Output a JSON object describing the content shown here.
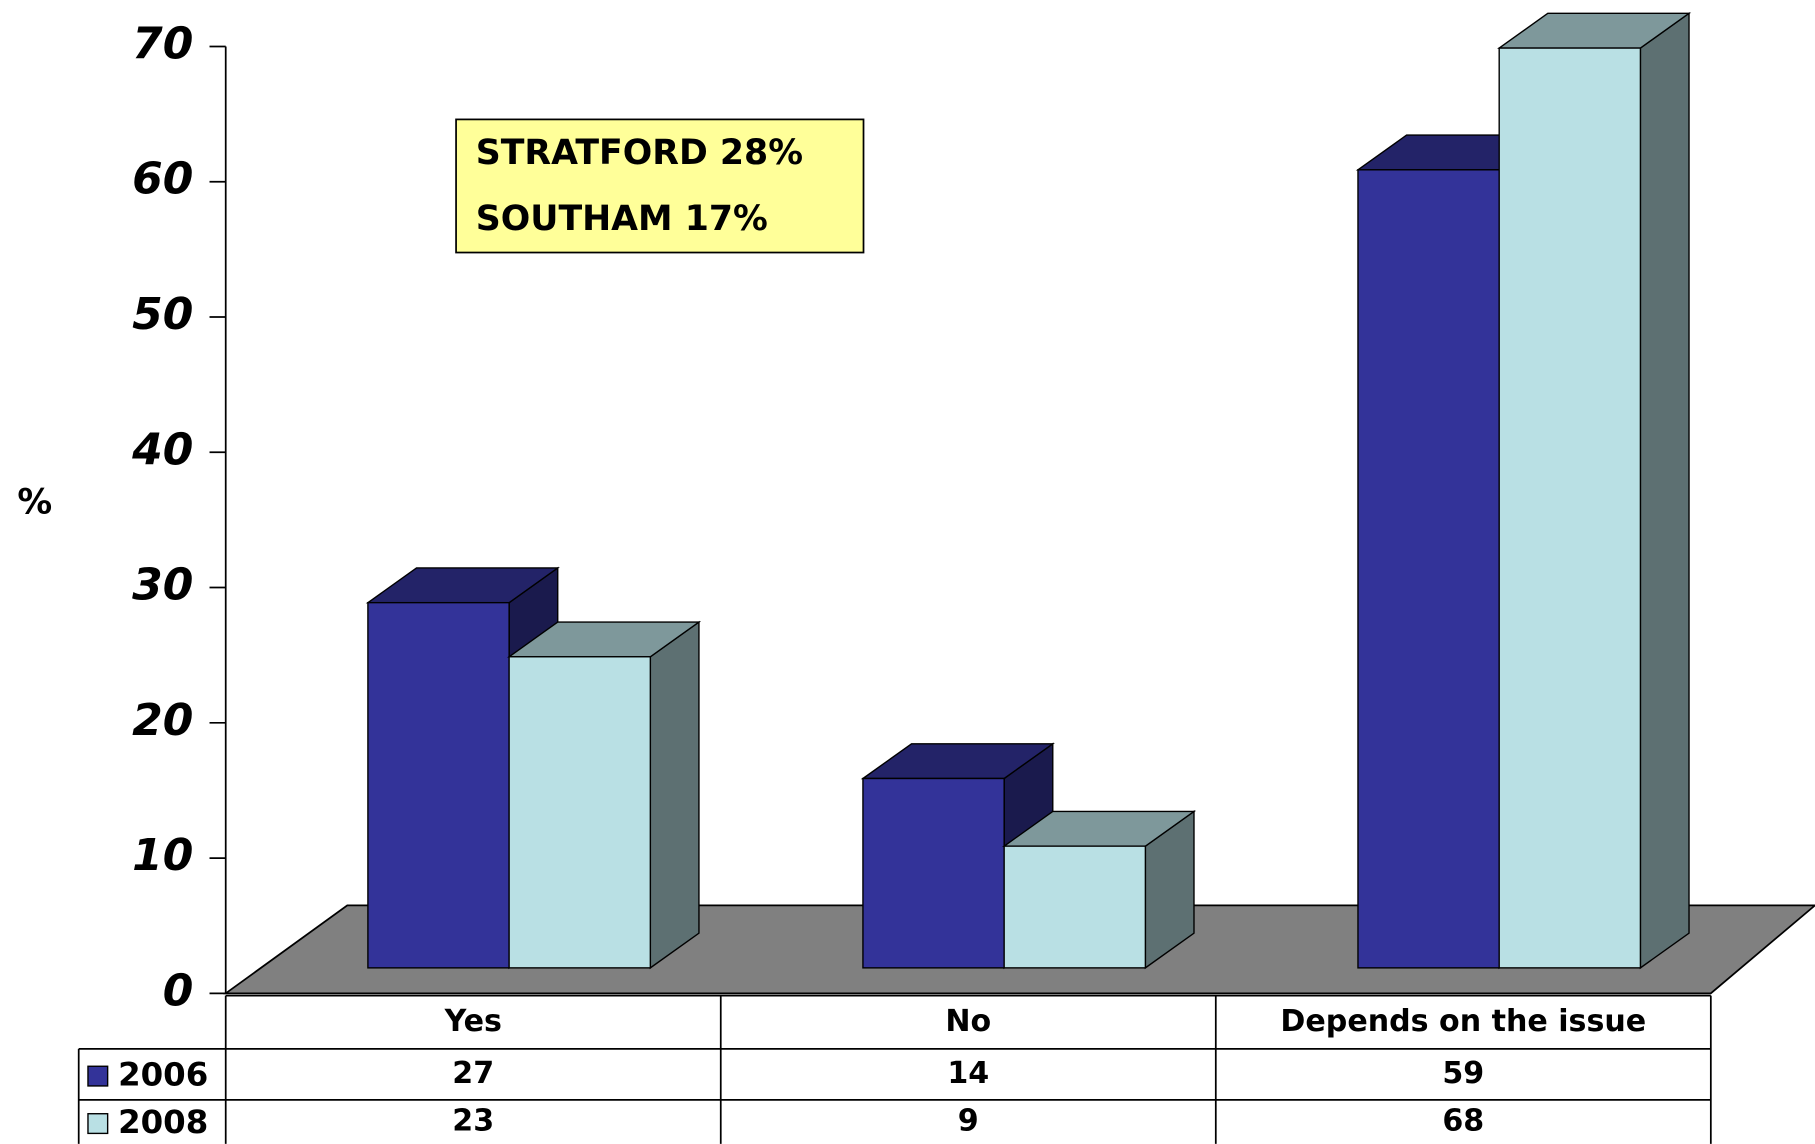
{
  "chart_data": {
    "type": "bar3d",
    "y_label": "%",
    "annotations": [
      "STRATFORD 28%",
      "SOUTHAM 17%"
    ],
    "categories": [
      "Yes",
      "No",
      "Depends on the issue"
    ],
    "series": [
      {
        "name": "2006",
        "color": "#333399",
        "values": [
          27,
          14,
          59
        ]
      },
      {
        "name": "2008",
        "color": "#b9e0e4",
        "values": [
          23,
          9,
          68
        ]
      }
    ],
    "ylim": [
      0,
      70
    ],
    "yticks": [
      0,
      10,
      20,
      30,
      40,
      50,
      60,
      70
    ],
    "grid": false
  }
}
